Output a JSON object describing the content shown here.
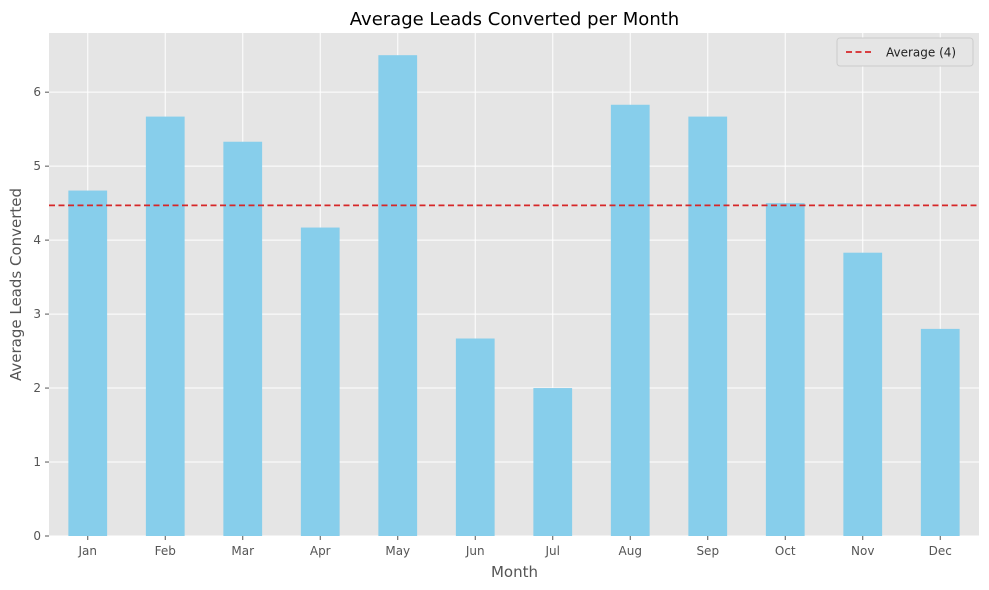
{
  "chart_data": {
    "type": "bar",
    "title": "Average Leads Converted per Month",
    "xlabel": "Month",
    "ylabel": "Average Leads Converted",
    "categories": [
      "Jan",
      "Feb",
      "Mar",
      "Apr",
      "May",
      "Jun",
      "Jul",
      "Aug",
      "Sep",
      "Oct",
      "Nov",
      "Dec"
    ],
    "values": [
      4.67,
      5.67,
      5.33,
      4.17,
      6.5,
      2.67,
      2.0,
      5.83,
      5.67,
      4.5,
      3.83,
      2.8
    ],
    "ylim": [
      0,
      6.8
    ],
    "yticks": [
      0,
      1,
      2,
      3,
      4,
      5,
      6
    ],
    "grid": true,
    "bar_color": "#87ceeb",
    "plot_background": "#e5e5e5",
    "reference_line": {
      "label": "Average (4)",
      "value": 4.47,
      "color": "#d62728",
      "style": "dashed"
    },
    "legend": {
      "placement": "top-right"
    }
  }
}
